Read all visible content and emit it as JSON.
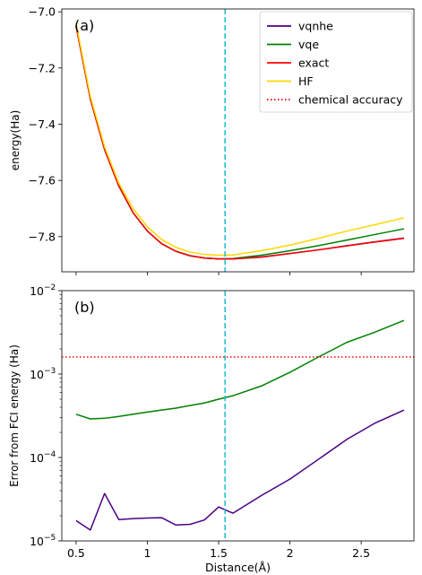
{
  "chart_data": [
    {
      "type": "line",
      "panel_label": "(a)",
      "ylabel": "energy(Ha)",
      "xlim": [
        0.4,
        2.87
      ],
      "ylim": [
        -7.925,
        -6.99
      ],
      "xticks": [
        0.5,
        1.0,
        1.5,
        2.0,
        2.5
      ],
      "yticks": [
        -7.0,
        -7.2,
        -7.4,
        -7.6,
        -7.8
      ],
      "ytick_labels": [
        "−7.0",
        "−7.2",
        "−7.4",
        "−7.6",
        "−7.8"
      ],
      "vline_x": 1.545,
      "legend_position": "top-right",
      "legend": [
        {
          "label": "vqnhe",
          "color": "#4b0082",
          "style": "solid"
        },
        {
          "label": "vqe",
          "color": "#008000",
          "style": "solid"
        },
        {
          "label": "exact",
          "color": "#ff0000",
          "style": "solid"
        },
        {
          "label": "HF",
          "color": "#ffd700",
          "style": "solid"
        },
        {
          "label": "chemical accuracy",
          "color": "#ff0000",
          "style": "dotted"
        }
      ],
      "series": [
        {
          "name": "vqnhe",
          "color": "#4b0082",
          "x": [
            0.5,
            0.6,
            0.7,
            0.8,
            0.9,
            1.0,
            1.1,
            1.2,
            1.3,
            1.4,
            1.5,
            1.6,
            1.8,
            2.0,
            2.2,
            2.4,
            2.6,
            2.8
          ],
          "y": [
            -7.05,
            -7.31,
            -7.49,
            -7.62,
            -7.715,
            -7.78,
            -7.825,
            -7.852,
            -7.868,
            -7.876,
            -7.879,
            -7.879,
            -7.872,
            -7.86,
            -7.847,
            -7.832,
            -7.818,
            -7.805
          ]
        },
        {
          "name": "vqe",
          "color": "#008000",
          "x": [
            0.5,
            0.6,
            0.7,
            0.8,
            0.9,
            1.0,
            1.1,
            1.2,
            1.3,
            1.4,
            1.5,
            1.6,
            1.8,
            2.0,
            2.2,
            2.4,
            2.6,
            2.8
          ],
          "y": [
            -7.05,
            -7.31,
            -7.49,
            -7.62,
            -7.715,
            -7.78,
            -7.825,
            -7.852,
            -7.868,
            -7.876,
            -7.879,
            -7.878,
            -7.866,
            -7.85,
            -7.832,
            -7.812,
            -7.792,
            -7.772
          ]
        },
        {
          "name": "exact",
          "color": "#ff0000",
          "x": [
            0.5,
            0.6,
            0.7,
            0.8,
            0.9,
            1.0,
            1.1,
            1.2,
            1.3,
            1.4,
            1.5,
            1.6,
            1.8,
            2.0,
            2.2,
            2.4,
            2.6,
            2.8
          ],
          "y": [
            -7.05,
            -7.31,
            -7.49,
            -7.62,
            -7.715,
            -7.78,
            -7.825,
            -7.852,
            -7.868,
            -7.876,
            -7.879,
            -7.879,
            -7.873,
            -7.86,
            -7.847,
            -7.833,
            -7.819,
            -7.806
          ]
        },
        {
          "name": "HF",
          "color": "#ffd700",
          "x": [
            0.5,
            0.6,
            0.7,
            0.8,
            0.9,
            1.0,
            1.1,
            1.2,
            1.3,
            1.4,
            1.5,
            1.6,
            1.8,
            2.0,
            2.2,
            2.4,
            2.6,
            2.8
          ],
          "y": [
            -7.04,
            -7.3,
            -7.48,
            -7.61,
            -7.7,
            -7.765,
            -7.81,
            -7.838,
            -7.855,
            -7.863,
            -7.866,
            -7.865,
            -7.85,
            -7.83,
            -7.806,
            -7.78,
            -7.757,
            -7.733
          ]
        }
      ]
    },
    {
      "type": "line",
      "panel_label": "(b)",
      "xlabel": "Distance(Å)",
      "ylabel": "Error from FCI energy (Ha)",
      "yscale": "log",
      "xlim": [
        0.4,
        2.87
      ],
      "ylim": [
        1e-05,
        0.01
      ],
      "xticks": [
        0.5,
        1.0,
        1.5,
        2.0,
        2.5
      ],
      "yticks": [
        1e-05,
        0.0001,
        0.001,
        0.01
      ],
      "ytick_base": "10",
      "ytick_exponents": [
        "−5",
        "−4",
        "−3",
        "−2"
      ],
      "vline_x": 1.545,
      "hline": {
        "name": "chemical accuracy",
        "y": 0.0016,
        "color": "#ff0000",
        "style": "dotted"
      },
      "series": [
        {
          "name": "vqe",
          "color": "#008000",
          "x": [
            0.5,
            0.6,
            0.7,
            0.8,
            0.9,
            1.0,
            1.1,
            1.2,
            1.3,
            1.4,
            1.5,
            1.6,
            1.8,
            2.0,
            2.2,
            2.4,
            2.6,
            2.8
          ],
          "y": [
            0.00033,
            0.00029,
            0.000295,
            0.00031,
            0.00033,
            0.00035,
            0.00037,
            0.00039,
            0.00042,
            0.00045,
            0.0005,
            0.00055,
            0.00072,
            0.00105,
            0.0016,
            0.0024,
            0.0032,
            0.0044
          ]
        },
        {
          "name": "vqnhe",
          "color": "#4b0082",
          "x": [
            0.5,
            0.6,
            0.7,
            0.8,
            0.9,
            1.0,
            1.1,
            1.2,
            1.3,
            1.4,
            1.5,
            1.6,
            1.8,
            2.0,
            2.2,
            2.4,
            2.6,
            2.8
          ],
          "y": [
            1.75e-05,
            1.35e-05,
            3.7e-05,
            1.8e-05,
            1.85e-05,
            1.88e-05,
            1.9e-05,
            1.55e-05,
            1.58e-05,
            1.78e-05,
            2.55e-05,
            2.15e-05,
            3.5e-05,
            5.5e-05,
            9.5e-05,
            0.000165,
            0.00026,
            0.00037
          ]
        }
      ]
    }
  ]
}
